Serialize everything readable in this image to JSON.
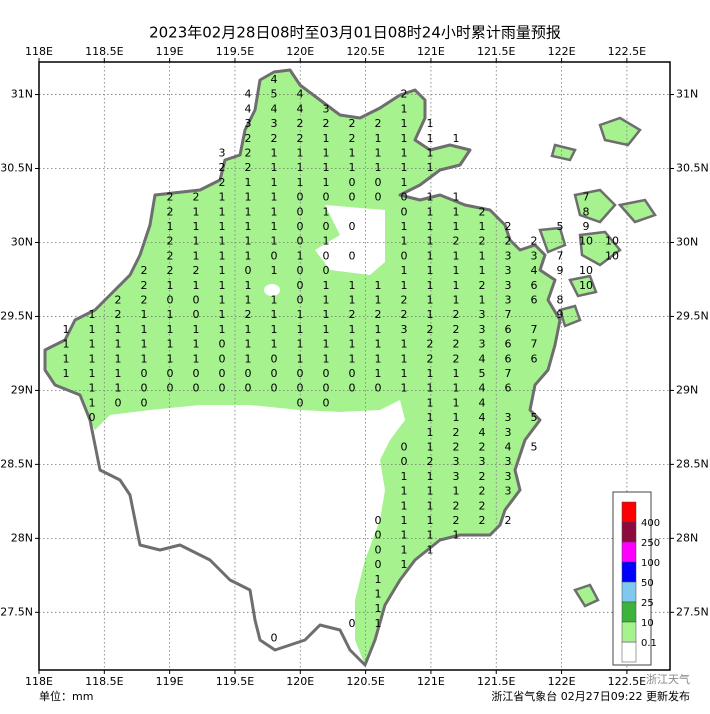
{
  "chart_data": {
    "type": "map",
    "title": "2023年02月28日08时至03月01日08时24小时累计雨量预报",
    "xlim": [
      118,
      122.83
    ],
    "ylim": [
      27.11,
      31.22
    ],
    "xticks": [
      {
        "value": 118,
        "label": "118E"
      },
      {
        "value": 118.5,
        "label": "118.5E"
      },
      {
        "value": 119,
        "label": "119E"
      },
      {
        "value": 119.5,
        "label": "119.5E"
      },
      {
        "value": 120,
        "label": "120E"
      },
      {
        "value": 120.5,
        "label": "120.5E"
      },
      {
        "value": 121,
        "label": "121E"
      },
      {
        "value": 121.5,
        "label": "121.5E"
      },
      {
        "value": 122,
        "label": "122E"
      },
      {
        "value": 122.5,
        "label": "122.5E"
      }
    ],
    "yticks": [
      {
        "value": 31,
        "label": "31N"
      },
      {
        "value": 30.5,
        "label": "30.5N"
      },
      {
        "value": 30,
        "label": "30N"
      },
      {
        "value": 29.5,
        "label": "29.5N"
      },
      {
        "value": 29,
        "label": "29N"
      },
      {
        "value": 28.5,
        "label": "28.5N"
      },
      {
        "value": 28,
        "label": "28N"
      },
      {
        "value": 27.5,
        "label": "27.5N"
      }
    ],
    "grid": true,
    "grid_values": [
      [
        null,
        null,
        null,
        null,
        null,
        null,
        null,
        null,
        4,
        null,
        null,
        null,
        null,
        null,
        null,
        null,
        null,
        null,
        null,
        null,
        null,
        null
      ],
      [
        null,
        null,
        null,
        null,
        null,
        null,
        null,
        4,
        5,
        4,
        null,
        null,
        null,
        2,
        null,
        null,
        null,
        null,
        null,
        null,
        null,
        null
      ],
      [
        null,
        null,
        null,
        null,
        null,
        null,
        null,
        4,
        4,
        4,
        3,
        null,
        null,
        1,
        null,
        null,
        null,
        null,
        null,
        null,
        null,
        null
      ],
      [
        null,
        null,
        null,
        null,
        null,
        null,
        null,
        3,
        3,
        2,
        2,
        2,
        2,
        1,
        1,
        null,
        null,
        null,
        null,
        null,
        null,
        null
      ],
      [
        null,
        null,
        null,
        null,
        null,
        null,
        null,
        2,
        2,
        2,
        1,
        2,
        1,
        1,
        1,
        1,
        null,
        null,
        null,
        null,
        null,
        null
      ],
      [
        null,
        null,
        null,
        null,
        null,
        null,
        3,
        2,
        1,
        1,
        1,
        1,
        1,
        1,
        1,
        null,
        null,
        null,
        null,
        null,
        null,
        null
      ],
      [
        null,
        null,
        null,
        null,
        null,
        null,
        2,
        2,
        1,
        1,
        1,
        1,
        1,
        1,
        1,
        null,
        null,
        null,
        null,
        null,
        null,
        null
      ],
      [
        null,
        null,
        null,
        null,
        null,
        null,
        2,
        1,
        1,
        1,
        1,
        0,
        0,
        1,
        null,
        null,
        null,
        null,
        null,
        null,
        null,
        null
      ],
      [
        null,
        null,
        null,
        null,
        2,
        2,
        1,
        1,
        1,
        0,
        0,
        0,
        0,
        0,
        1,
        1,
        null,
        null,
        null,
        null,
        7,
        null
      ],
      [
        null,
        null,
        null,
        null,
        2,
        1,
        1,
        1,
        1,
        0,
        1,
        null,
        null,
        0,
        1,
        1,
        2,
        null,
        null,
        null,
        8,
        null
      ],
      [
        null,
        null,
        null,
        null,
        1,
        1,
        1,
        1,
        1,
        0,
        0,
        0,
        null,
        1,
        1,
        1,
        1,
        2,
        null,
        5,
        9,
        null
      ],
      [
        null,
        null,
        null,
        null,
        2,
        1,
        1,
        1,
        1,
        0,
        1,
        null,
        null,
        1,
        1,
        2,
        2,
        2,
        2,
        null,
        10,
        10
      ],
      [
        null,
        null,
        null,
        null,
        2,
        1,
        1,
        1,
        0,
        1,
        0,
        0,
        null,
        0,
        1,
        1,
        1,
        3,
        3,
        7,
        null,
        10
      ],
      [
        null,
        null,
        null,
        2,
        2,
        2,
        1,
        0,
        1,
        0,
        0,
        null,
        null,
        1,
        1,
        1,
        1,
        3,
        4,
        9,
        10,
        null
      ],
      [
        null,
        null,
        null,
        2,
        1,
        1,
        1,
        1,
        null,
        0,
        1,
        1,
        1,
        1,
        1,
        1,
        2,
        3,
        6,
        null,
        10,
        null
      ],
      [
        null,
        null,
        2,
        2,
        0,
        0,
        1,
        1,
        1,
        0,
        1,
        1,
        1,
        2,
        1,
        1,
        1,
        3,
        6,
        8,
        null,
        null
      ],
      [
        null,
        1,
        2,
        1,
        1,
        0,
        1,
        2,
        1,
        1,
        1,
        2,
        2,
        2,
        1,
        2,
        3,
        7,
        null,
        9,
        null,
        null
      ],
      [
        1,
        1,
        1,
        1,
        1,
        1,
        1,
        1,
        1,
        1,
        1,
        1,
        1,
        3,
        2,
        2,
        3,
        6,
        7,
        null,
        null,
        null
      ],
      [
        1,
        1,
        1,
        1,
        1,
        1,
        0,
        1,
        1,
        1,
        1,
        1,
        1,
        1,
        2,
        2,
        3,
        6,
        7,
        null,
        null,
        null
      ],
      [
        1,
        1,
        1,
        1,
        1,
        1,
        0,
        1,
        0,
        1,
        1,
        1,
        1,
        1,
        2,
        2,
        4,
        6,
        6,
        null,
        null,
        null
      ],
      [
        1,
        1,
        1,
        0,
        0,
        0,
        0,
        0,
        0,
        0,
        0,
        0,
        1,
        1,
        1,
        1,
        5,
        7,
        null,
        null,
        null,
        null
      ],
      [
        null,
        1,
        1,
        0,
        0,
        0,
        0,
        0,
        0,
        0,
        0,
        0,
        0,
        1,
        1,
        1,
        4,
        6,
        null,
        null,
        null,
        null
      ],
      [
        null,
        1,
        0,
        0,
        null,
        null,
        null,
        null,
        null,
        0,
        0,
        null,
        null,
        null,
        1,
        1,
        4,
        null,
        null,
        null,
        null,
        null
      ],
      [
        null,
        0,
        null,
        null,
        null,
        null,
        null,
        null,
        null,
        null,
        null,
        null,
        null,
        null,
        1,
        1,
        4,
        3,
        5,
        null,
        null,
        null
      ],
      [
        null,
        null,
        null,
        null,
        null,
        null,
        null,
        null,
        null,
        null,
        null,
        null,
        null,
        null,
        1,
        2,
        4,
        3,
        null,
        null,
        null,
        null
      ],
      [
        null,
        null,
        null,
        null,
        null,
        null,
        null,
        null,
        null,
        null,
        null,
        null,
        null,
        0,
        1,
        2,
        2,
        4,
        5,
        null,
        null,
        null
      ],
      [
        null,
        null,
        null,
        null,
        null,
        null,
        null,
        null,
        null,
        null,
        null,
        null,
        null,
        0,
        2,
        3,
        3,
        3,
        null,
        null,
        null,
        null
      ],
      [
        null,
        null,
        null,
        null,
        null,
        null,
        null,
        null,
        null,
        null,
        null,
        null,
        null,
        1,
        1,
        3,
        2,
        3,
        null,
        null,
        null,
        null
      ],
      [
        null,
        null,
        null,
        null,
        null,
        null,
        null,
        null,
        null,
        null,
        null,
        null,
        null,
        1,
        1,
        1,
        2,
        3,
        null,
        null,
        null,
        null
      ],
      [
        null,
        null,
        null,
        null,
        null,
        null,
        null,
        null,
        null,
        null,
        null,
        null,
        null,
        1,
        1,
        2,
        2,
        null,
        null,
        null,
        null,
        null
      ],
      [
        null,
        null,
        null,
        null,
        null,
        null,
        null,
        null,
        null,
        null,
        null,
        null,
        0,
        1,
        1,
        2,
        2,
        2,
        null,
        null,
        null,
        null
      ],
      [
        null,
        null,
        null,
        null,
        null,
        null,
        null,
        null,
        null,
        null,
        null,
        null,
        0,
        1,
        1,
        1,
        null,
        null,
        null,
        null,
        null,
        null
      ],
      [
        null,
        null,
        null,
        null,
        null,
        null,
        null,
        null,
        null,
        null,
        null,
        null,
        0,
        1,
        1,
        null,
        null,
        null,
        null,
        null,
        null,
        null
      ],
      [
        null,
        null,
        null,
        null,
        null,
        null,
        null,
        null,
        null,
        null,
        null,
        null,
        0,
        1,
        null,
        null,
        null,
        null,
        null,
        null,
        null,
        null
      ],
      [
        null,
        null,
        null,
        null,
        null,
        null,
        null,
        null,
        null,
        null,
        null,
        null,
        1,
        null,
        null,
        null,
        null,
        null,
        null,
        null,
        null,
        null
      ],
      [
        null,
        null,
        null,
        null,
        null,
        null,
        null,
        null,
        null,
        null,
        null,
        null,
        1,
        null,
        null,
        null,
        null,
        null,
        null,
        null,
        null,
        null
      ],
      [
        null,
        null,
        null,
        null,
        null,
        null,
        null,
        null,
        null,
        null,
        null,
        null,
        1,
        null,
        null,
        null,
        null,
        null,
        null,
        null,
        null,
        null
      ],
      [
        null,
        null,
        null,
        null,
        null,
        null,
        null,
        null,
        null,
        null,
        null,
        0,
        1,
        null,
        null,
        null,
        null,
        null,
        null,
        null,
        null,
        null
      ],
      [
        null,
        null,
        null,
        null,
        null,
        null,
        null,
        null,
        0,
        null,
        null,
        null,
        null,
        null,
        null,
        null,
        null,
        null,
        null,
        null,
        null,
        null
      ]
    ],
    "legend": [
      {
        "value": 400,
        "color": "#ff0000"
      },
      {
        "value": 250,
        "color": "#8c0a3c"
      },
      {
        "value": 100,
        "color": "#ff00ff"
      },
      {
        "value": 50,
        "color": "#0000ff"
      },
      {
        "value": 25,
        "color": "#80c8f0"
      },
      {
        "value": 10,
        "color": "#3cb43c"
      },
      {
        "value": 0.1,
        "color": "#a6f28f"
      }
    ],
    "unit": "单位：mm",
    "source": "浙江省气象台 02月27日09:22 更新发布",
    "watermark": "浙江天气"
  }
}
